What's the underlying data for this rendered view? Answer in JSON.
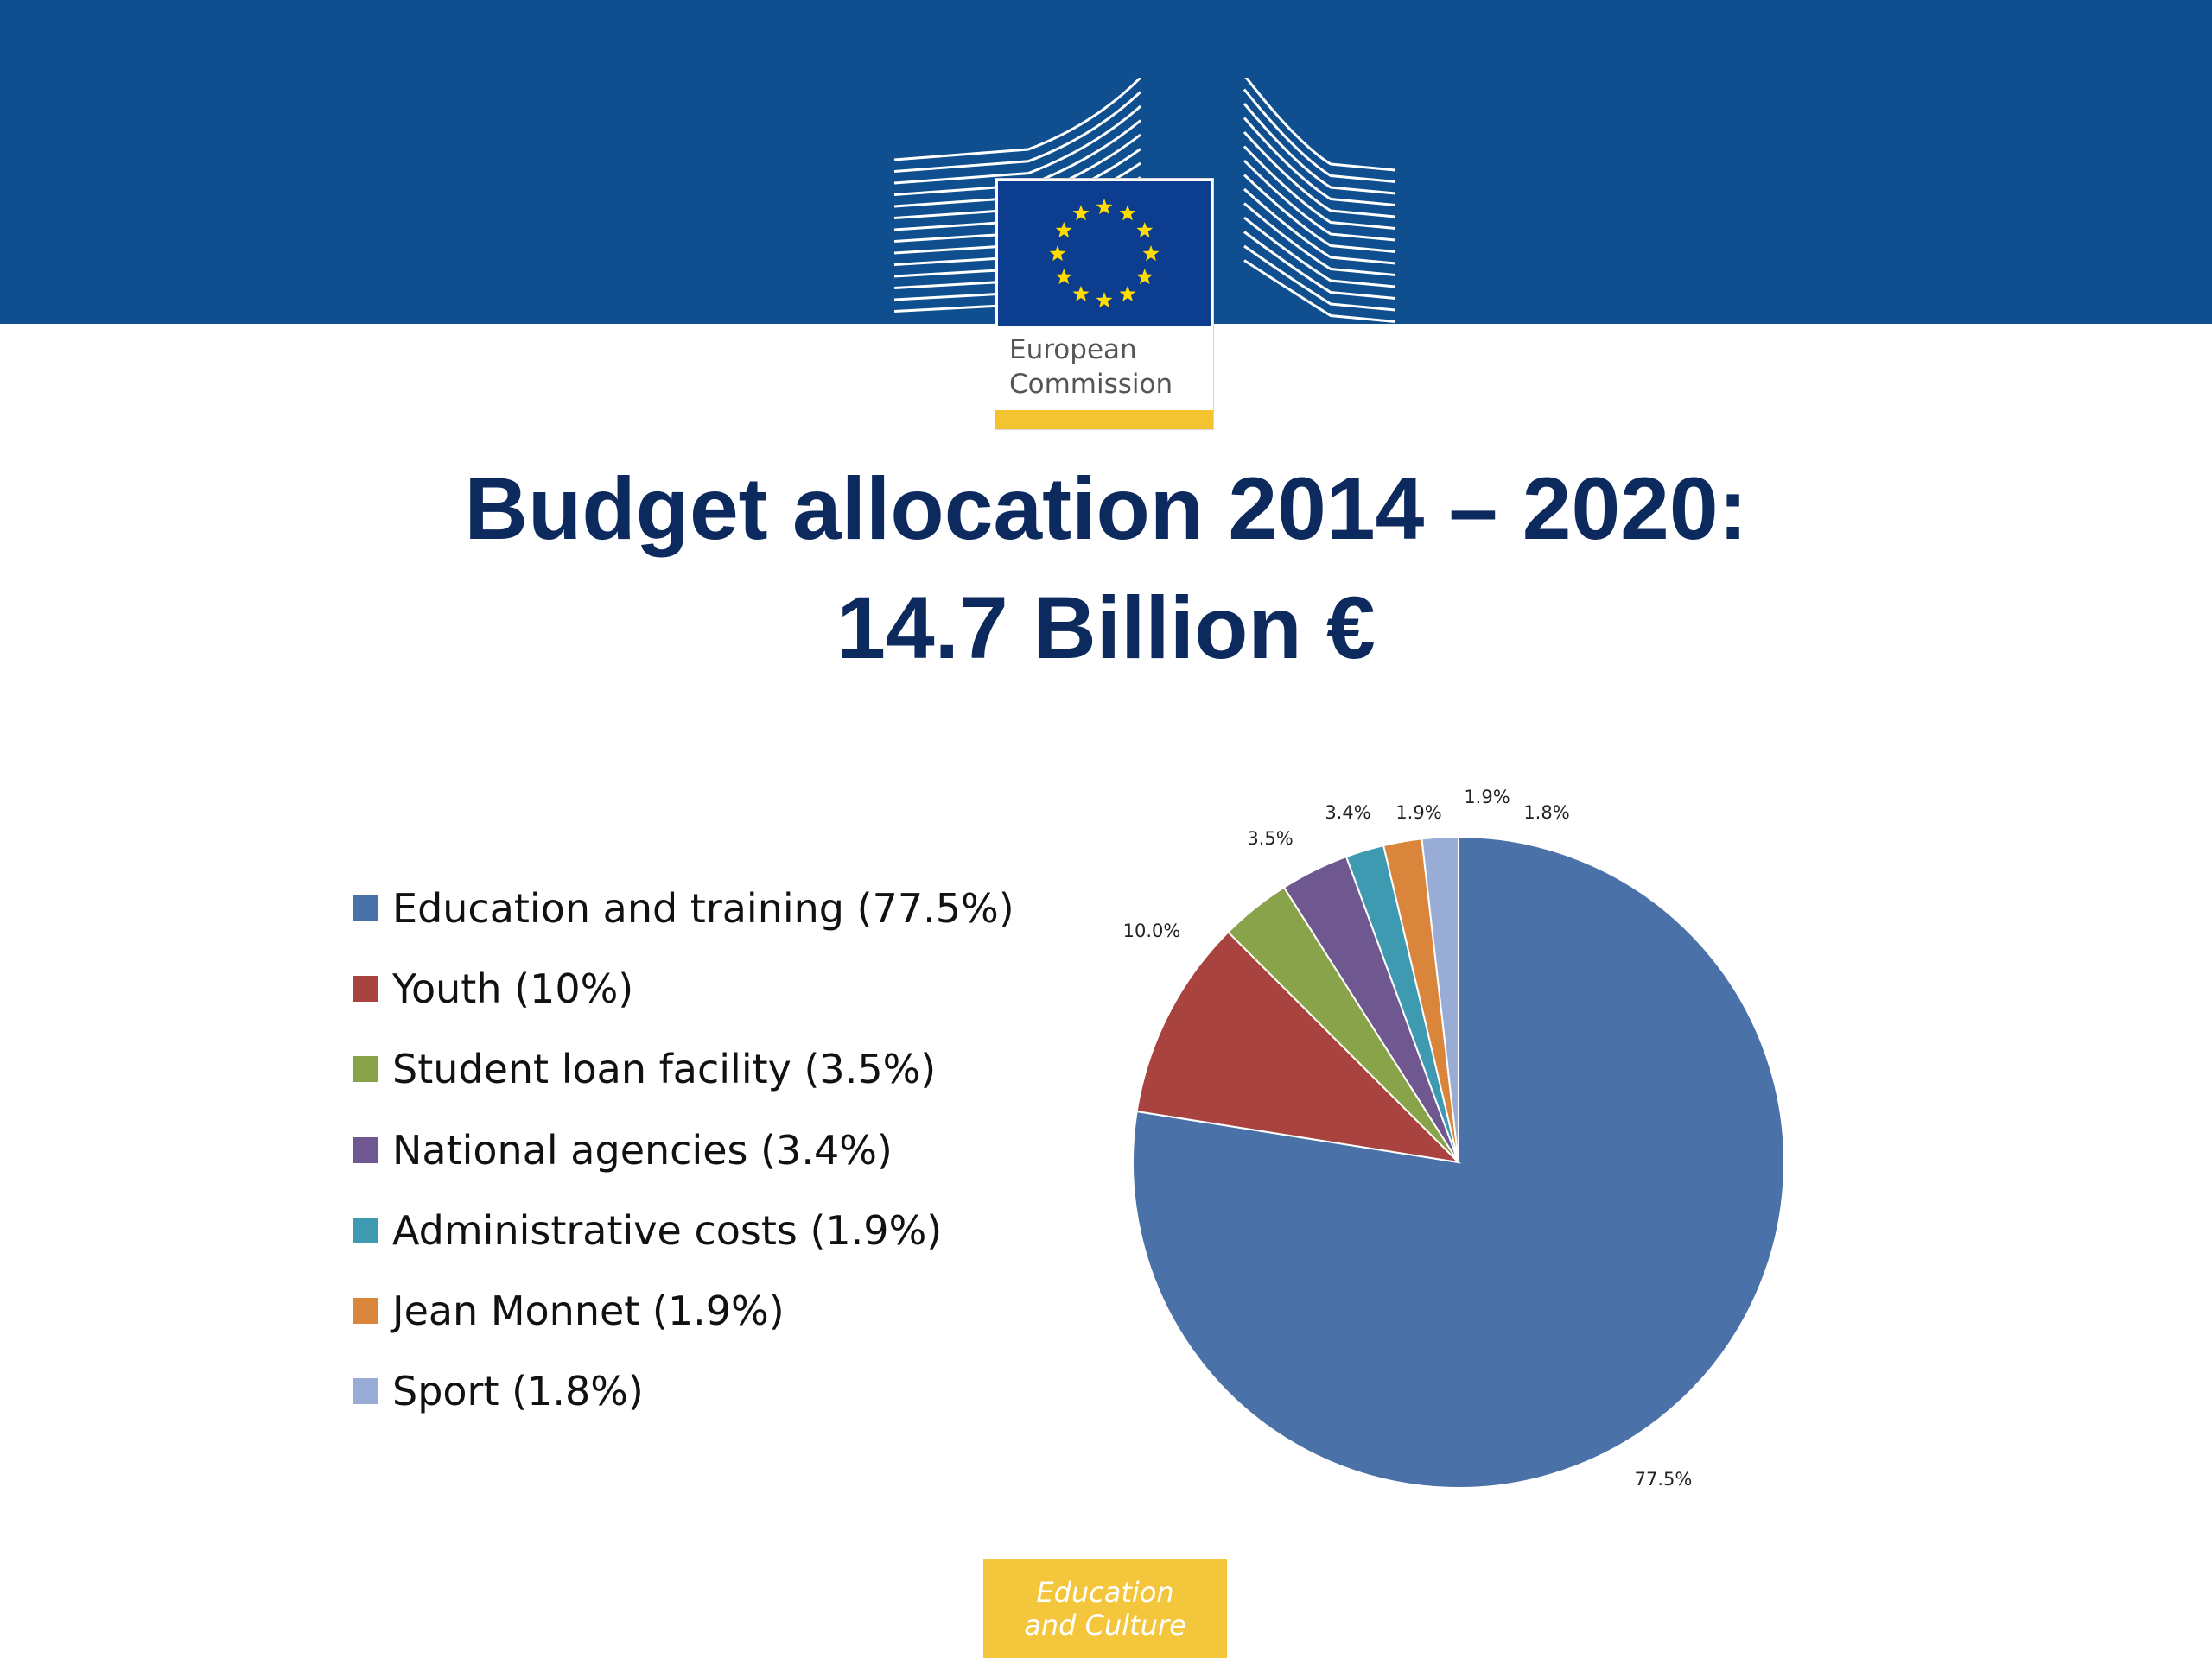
{
  "header": {
    "logo_icon": "european-commission-logo",
    "logo_text": "European\nCommission",
    "flag_color": "#0c3d8f",
    "band_color": "#0f4f8f"
  },
  "title": {
    "line1": "Budget allocation 2014 – 2020:",
    "line2": "14.7 Billion €"
  },
  "chart_data": {
    "type": "pie",
    "categories": [
      "Education and training (77.5%)",
      "Youth (10%)",
      "Student loan facility (3.5%)",
      "National agencies (3.4%)",
      "Administrative costs (1.9%)",
      "Jean Monnet (1.9%)",
      "Sport (1.8%)"
    ],
    "values": [
      77.5,
      10.0,
      3.5,
      3.4,
      1.9,
      1.9,
      1.8
    ],
    "data_labels": [
      "77.5%",
      "10.0%",
      "3.5%",
      "3.4%",
      "1.9%",
      "1.9%",
      "1.8%"
    ],
    "colors": [
      "#4a71a8",
      "#a8433f",
      "#88a34a",
      "#6f5790",
      "#3e9ab0",
      "#d9853b",
      "#98acd6"
    ],
    "legend_position": "left"
  },
  "footer": {
    "line1": "Education",
    "line2": "and Culture"
  }
}
